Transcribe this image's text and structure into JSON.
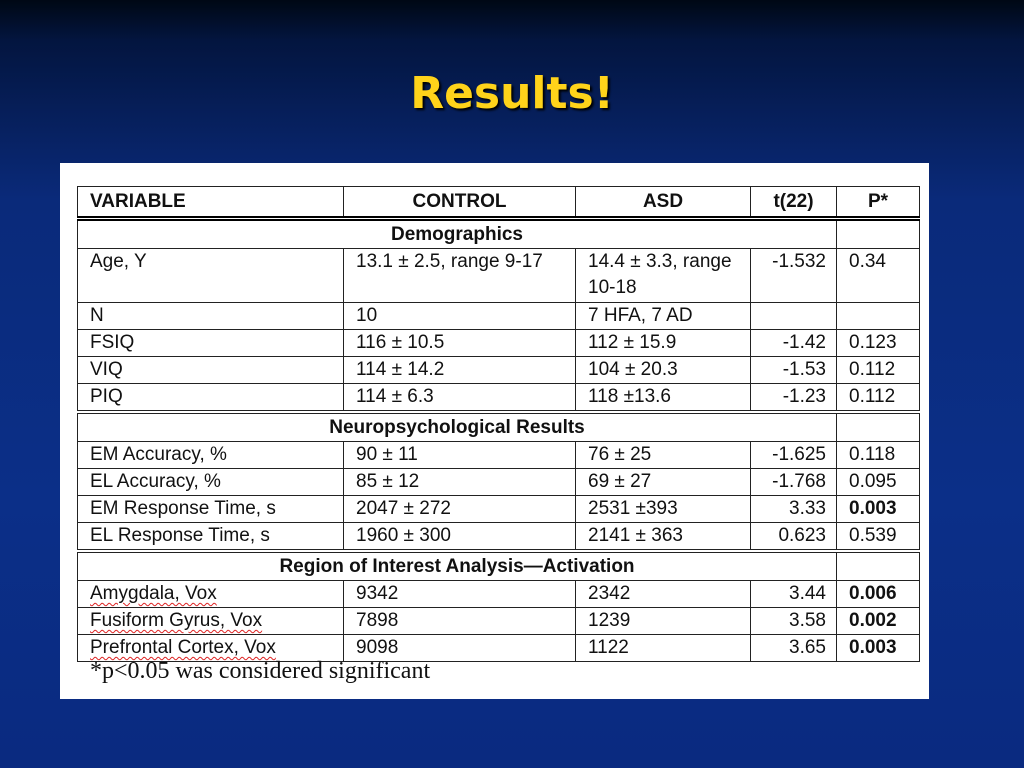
{
  "slide": {
    "title": "Results!",
    "colors": {
      "title": "#FFD31A",
      "background": "#0b2f88"
    }
  },
  "table": {
    "headers": [
      "VARIABLE",
      "CONTROL",
      "ASD",
      "t(22)",
      "P*"
    ],
    "sections": [
      {
        "name": "Demographics",
        "rows": [
          {
            "variable": "Age, Y",
            "control": "13.1 ± 2.5, range 9-17",
            "asd": "14.4 ± 3.3, range 10-18",
            "t": "-1.532",
            "p": "0.34",
            "significant": false
          },
          {
            "variable": "N",
            "control": "10",
            "asd": "7 HFA, 7 AD",
            "t": "",
            "p": "",
            "significant": false
          },
          {
            "variable": "FSIQ",
            "control": "116 ± 10.5",
            "asd": "112 ± 15.9",
            "t": "-1.42",
            "p": "0.123",
            "significant": false
          },
          {
            "variable": "VIQ",
            "control": "114 ± 14.2",
            "asd": "104 ± 20.3",
            "t": "-1.53",
            "p": "0.112",
            "significant": false
          },
          {
            "variable": "PIQ",
            "control": "114 ± 6.3",
            "asd": "118 ±13.6",
            "t": "-1.23",
            "p": "0.112",
            "significant": false
          }
        ]
      },
      {
        "name": "Neuropsychological Results",
        "rows": [
          {
            "variable": "EM Accuracy, %",
            "control": "90 ± 11",
            "asd": "76 ± 25",
            "t": "-1.625",
            "p": "0.118",
            "significant": false
          },
          {
            "variable": "EL  Accuracy, %",
            "control": "85 ± 12",
            "asd": "69 ± 27",
            "t": "-1.768",
            "p": "0.095",
            "significant": false
          },
          {
            "variable": "EM Response Time, s",
            "control": "2047 ± 272",
            "asd": "2531 ±393",
            "t": "3.33",
            "p": "0.003",
            "significant": true
          },
          {
            "variable": "EL Response Time, s",
            "control": "1960 ± 300",
            "asd": "2141 ± 363",
            "t": "0.623",
            "p": "0.539",
            "significant": false
          }
        ]
      },
      {
        "name": "Region of Interest Analysis—Activation",
        "rows": [
          {
            "variable": "Amygdala, Vox",
            "control": "9342",
            "asd": "2342",
            "t": "3.44",
            "p": "0.006",
            "significant": true,
            "spellcheck": true
          },
          {
            "variable": "Fusiform Gyrus, Vox",
            "control": "7898",
            "asd": "1239",
            "t": "3.58",
            "p": "0.002",
            "significant": true,
            "spellcheck": true
          },
          {
            "variable": "Prefrontal Cortex, Vox",
            "control": "9098",
            "asd": "1122",
            "t": "3.65",
            "p": "0.003",
            "significant": true,
            "spellcheck": true
          }
        ]
      }
    ],
    "footnote": "*p<0.05 was considered significant"
  }
}
